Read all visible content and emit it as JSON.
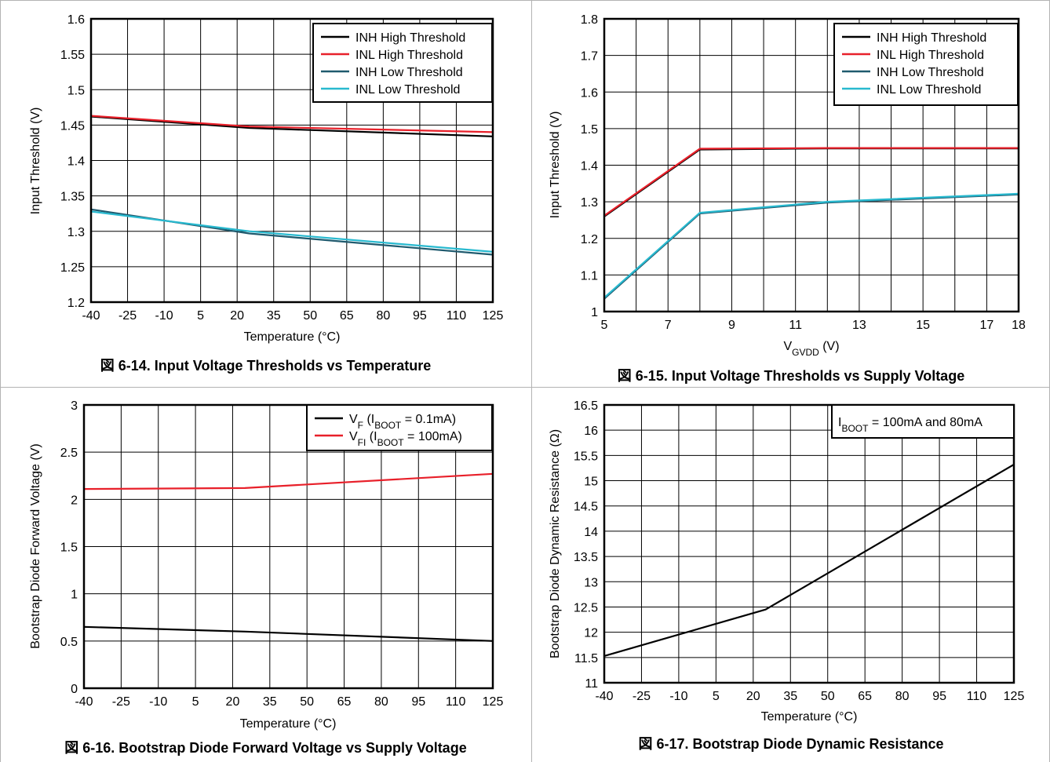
{
  "colors": {
    "black_series": "#000000",
    "red_series": "#e8202a",
    "dark_teal_series": "#1f5a6e",
    "cyan_series": "#28b9cf",
    "grid": "#000000"
  },
  "chart_data": [
    {
      "type": "line",
      "caption": "図 6-14. Input Voltage Thresholds vs Temperature",
      "xlabel": "Temperature (°C)",
      "ylabel": "Input Threshold (V)",
      "xlim": [
        -40,
        125
      ],
      "ylim": [
        1.2,
        1.6
      ],
      "xticks": [
        -40,
        -25,
        -10,
        5,
        20,
        35,
        50,
        65,
        80,
        95,
        110,
        125
      ],
      "yticks": [
        1.2,
        1.25,
        1.3,
        1.35,
        1.4,
        1.45,
        1.5,
        1.55,
        1.6
      ],
      "yticklabels": [
        "1.2",
        "1.25",
        "1.3",
        "1.35",
        "1.4",
        "1.45",
        "1.5",
        "1.55",
        "1.6"
      ],
      "grid": true,
      "legend_position": "top-right",
      "series": [
        {
          "name": "INH High Threshold",
          "color_key": "black_series",
          "x": [
            -40,
            25,
            125
          ],
          "y": [
            1.462,
            1.446,
            1.434
          ]
        },
        {
          "name": "INL High Threshold",
          "color_key": "red_series",
          "x": [
            -40,
            25,
            125
          ],
          "y": [
            1.463,
            1.448,
            1.44
          ]
        },
        {
          "name": "INH Low Threshold",
          "color_key": "dark_teal_series",
          "x": [
            -40,
            25,
            125
          ],
          "y": [
            1.331,
            1.297,
            1.267
          ]
        },
        {
          "name": "INL Low Threshold",
          "color_key": "cyan_series",
          "x": [
            -40,
            25,
            125
          ],
          "y": [
            1.328,
            1.3,
            1.271
          ]
        }
      ]
    },
    {
      "type": "line",
      "caption": "図 6-15. Input Voltage Thresholds vs Supply Voltage",
      "xlabel_main": "V",
      "xlabel_sub": "GVDD",
      "xlabel_suffix": " (V)",
      "ylabel": "Input Threshold (V)",
      "xlim": [
        5,
        18
      ],
      "ylim": [
        1,
        1.8
      ],
      "xticks": [
        5,
        7,
        9,
        11,
        13,
        15,
        17,
        18
      ],
      "xgrid": [
        5,
        6,
        7,
        8,
        9,
        10,
        11,
        12,
        13,
        14,
        15,
        16,
        17,
        18
      ],
      "yticks": [
        1,
        1.1,
        1.2,
        1.3,
        1.4,
        1.5,
        1.6,
        1.7,
        1.8
      ],
      "yticklabels": [
        "1",
        "1.1",
        "1.2",
        "1.3",
        "1.4",
        "1.5",
        "1.6",
        "1.7",
        "1.8"
      ],
      "grid": true,
      "legend_position": "top-right",
      "series": [
        {
          "name": "INH High Threshold",
          "color_key": "black_series",
          "x": [
            5,
            8,
            12,
            18
          ],
          "y": [
            1.26,
            1.443,
            1.446,
            1.446
          ]
        },
        {
          "name": "INL High Threshold",
          "color_key": "red_series",
          "x": [
            5,
            8,
            12,
            18
          ],
          "y": [
            1.262,
            1.445,
            1.447,
            1.447
          ]
        },
        {
          "name": "INH Low Threshold",
          "color_key": "dark_teal_series",
          "x": [
            5,
            8,
            12,
            18
          ],
          "y": [
            1.035,
            1.268,
            1.298,
            1.32
          ]
        },
        {
          "name": "INL Low Threshold",
          "color_key": "cyan_series",
          "x": [
            5,
            8,
            12,
            18
          ],
          "y": [
            1.038,
            1.27,
            1.3,
            1.322
          ]
        }
      ]
    },
    {
      "type": "line",
      "caption": "図 6-16. Bootstrap Diode Forward Voltage vs Supply Voltage",
      "xlabel": "Temperature (°C)",
      "ylabel": "Bootstrap Diode Forward Voltage (V)",
      "xlim": [
        -40,
        125
      ],
      "ylim": [
        0,
        3
      ],
      "xticks": [
        -40,
        -25,
        -10,
        5,
        20,
        35,
        50,
        65,
        80,
        95,
        110,
        125
      ],
      "yticks": [
        0,
        0.5,
        1,
        1.5,
        2,
        2.5,
        3
      ],
      "yticklabels": [
        "0",
        "0.5",
        "1",
        "1.5",
        "2",
        "2.5",
        "3"
      ],
      "grid": true,
      "legend_position": "top-right",
      "series": [
        {
          "name_main": "V",
          "name_sub": "F",
          "name_rest": " (I",
          "name_sub2": "BOOT",
          "name_tail": " = 0.1mA)",
          "color_key": "black_series",
          "x": [
            -40,
            25,
            125
          ],
          "y": [
            0.65,
            0.6,
            0.5
          ]
        },
        {
          "name_main": "V",
          "name_sub": "FI",
          "name_rest": " (I",
          "name_sub2": "BOOT",
          "name_tail": " = 100mA)",
          "color_key": "red_series",
          "x": [
            -40,
            25,
            125
          ],
          "y": [
            2.11,
            2.12,
            2.27
          ]
        }
      ]
    },
    {
      "type": "line",
      "caption": "図 6-17. Bootstrap Diode Dynamic Resistance",
      "xlabel": "Temperature (°C)",
      "ylabel": "Bootstrap Diode Dynamic Resistance (Ω)",
      "xlim": [
        -40,
        125
      ],
      "ylim": [
        11,
        16.5
      ],
      "xticks": [
        -40,
        -25,
        -10,
        5,
        20,
        35,
        50,
        65,
        80,
        95,
        110,
        125
      ],
      "yticks": [
        11,
        11.5,
        12,
        12.5,
        13,
        13.5,
        14,
        14.5,
        15,
        15.5,
        16,
        16.5
      ],
      "yticklabels": [
        "11",
        "11.5",
        "12",
        "12.5",
        "13",
        "13.5",
        "14",
        "14.5",
        "15",
        "15.5",
        "16",
        "16.5"
      ],
      "grid": true,
      "legend_position": "top-right",
      "annotation": {
        "main": "I",
        "sub": "BOOT",
        "rest": " = 100mA and 80mA"
      },
      "series": [
        {
          "color_key": "black_series",
          "x": [
            -40,
            25,
            125
          ],
          "y": [
            11.53,
            12.45,
            15.32
          ]
        }
      ]
    }
  ]
}
